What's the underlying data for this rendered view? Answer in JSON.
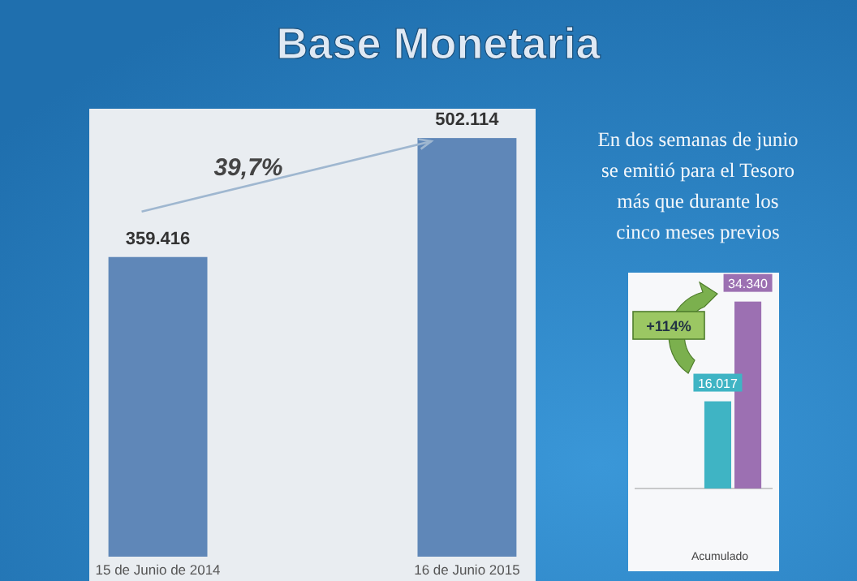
{
  "chart_data": [
    {
      "type": "bar",
      "title": "Base Monetaria",
      "categories": [
        "15 de Junio de 2014",
        "16 de Junio 2015"
      ],
      "values": [
        359416,
        502114
      ],
      "value_labels": [
        "359.416",
        "502.114"
      ],
      "color": "#5f87b8",
      "annotations": [
        "39,7%"
      ]
    },
    {
      "type": "other",
      "annotations": [
        "En dos semanas de junio se emitió para el Tesoro más que durante los cinco meses previos"
      ]
    },
    {
      "type": "bar",
      "xlabel": "Acumulado",
      "categories": [
        null
      ],
      "series": [
        {
          "color": "#3fb4c4",
          "values": [
            16017
          ],
          "value_labels": [
            "16.017"
          ]
        },
        {
          "color": "#9c70b2",
          "values": [
            34340
          ],
          "value_labels": [
            "34.340"
          ]
        }
      ],
      "annotations": [
        "+114%"
      ]
    }
  ]
}
